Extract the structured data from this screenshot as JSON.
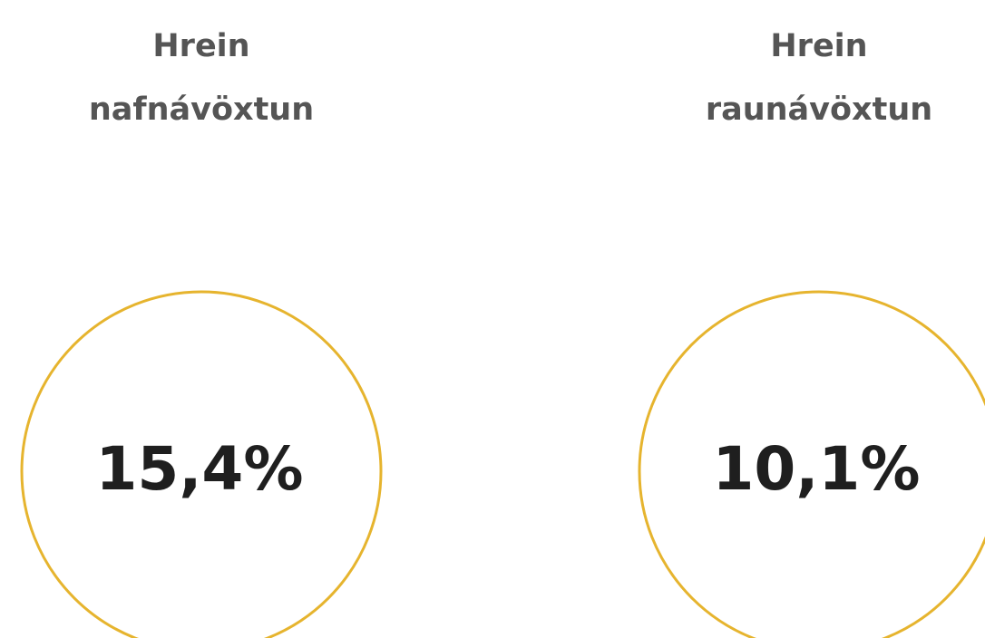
{
  "stats": [
    {
      "title_lines": [
        "Hrein",
        "nafnávöxtun"
      ],
      "value": "15,4%"
    },
    {
      "title_lines": [
        "Hrein",
        "raunávöxtun"
      ],
      "value": "10,1%"
    }
  ]
}
